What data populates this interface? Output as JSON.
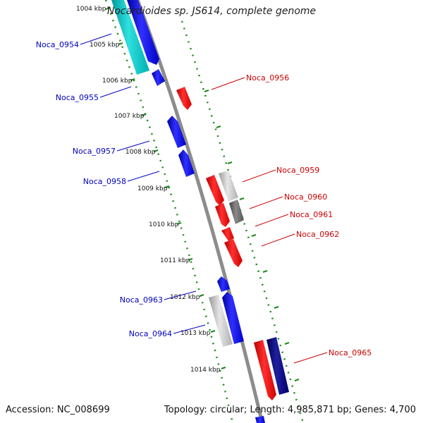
{
  "title": "Nocardioides sp. JS614, complete genome",
  "footer": {
    "accession": "Accession: NC_008699",
    "summary": "Topology: circular; Length: 4,985,871 bp; Genes: 4,700"
  },
  "colors": {
    "backbone": "#8c8c8c",
    "tick": "#1a8a1a",
    "forward_label": "#0000c0",
    "reverse_label": "#cc0000"
  },
  "ticks": [
    "1004 kbp",
    "1005 kbp",
    "1006 kbp",
    "1007 kbp",
    "1008 kbp",
    "1009 kbp",
    "1010 kbp",
    "1011 kbp",
    "1012 kbp",
    "1013 kbp",
    "1014 kbp"
  ],
  "genes": [
    {
      "name": "Noca_0954",
      "strand": "forward"
    },
    {
      "name": "Noca_0955",
      "strand": "forward"
    },
    {
      "name": "Noca_0956",
      "strand": "reverse"
    },
    {
      "name": "Noca_0957",
      "strand": "forward"
    },
    {
      "name": "Noca_0958",
      "strand": "forward"
    },
    {
      "name": "Noca_0959",
      "strand": "reverse"
    },
    {
      "name": "Noca_0960",
      "strand": "reverse"
    },
    {
      "name": "Noca_0961",
      "strand": "reverse"
    },
    {
      "name": "Noca_0962",
      "strand": "reverse"
    },
    {
      "name": "Noca_0963",
      "strand": "forward"
    },
    {
      "name": "Noca_0964",
      "strand": "forward"
    },
    {
      "name": "Noca_0965",
      "strand": "reverse"
    }
  ]
}
